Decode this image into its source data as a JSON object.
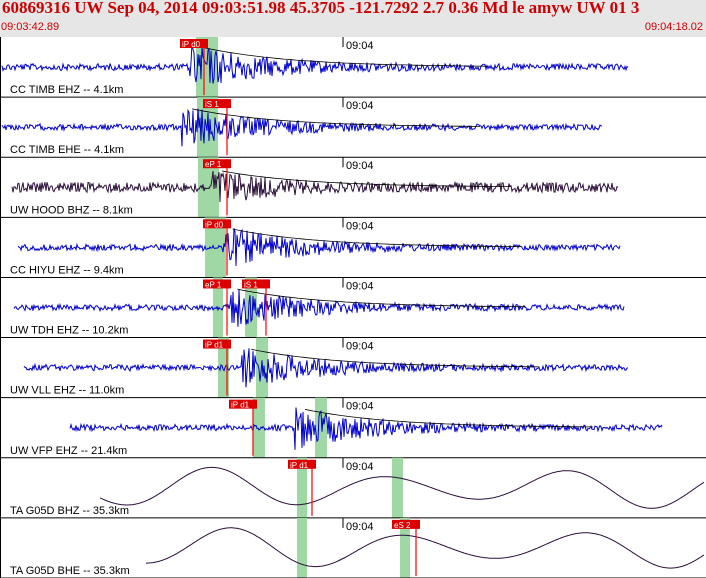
{
  "header": {
    "title": "60869316 UW Sep 04, 2014 09:03:51.98    45.3705 -121.7292  2.7 0.36 Md le amyw UW 01    3",
    "start_time": "09:03:42.89",
    "end_time": "09:04:18.02"
  },
  "colors": {
    "background": "#ffffff",
    "header_bg": "#e6e6e6",
    "header_text": "#cc0000",
    "trace_blue": "#0000cc",
    "trace_dark": "#2b0f3a",
    "pick_red": "#ff0000",
    "pick_label_bg": "#dd0000",
    "window_green": "#9fd8a4",
    "coda_line": "#000000"
  },
  "minute_mark": "09:04",
  "channels": [
    {
      "label": "CC TIMB EHZ -- 4.1km",
      "pick": "iP d0",
      "style": "blue",
      "amp": 1.0,
      "onset": 0.3
    },
    {
      "label": "CC TIMB EHE -- 4.1km",
      "pick": "iS 1",
      "style": "blue",
      "amp": 0.9,
      "onset": 0.3
    },
    {
      "label": "UW HOOD BHZ -- 8.1km",
      "pick": "eP 1",
      "style": "dark",
      "amp": 0.8,
      "onset": 0.33
    },
    {
      "label": "CC HIYU EHZ -- 9.4km",
      "pick": "iP d0",
      "style": "blue",
      "amp": 0.9,
      "onset": 0.34
    },
    {
      "label": "UW TDH EHZ -- 10.2km",
      "picks": [
        "eP 1",
        "iS 1"
      ],
      "style": "blue",
      "amp": 0.9,
      "onset": 0.35
    },
    {
      "label": "UW VLL EHZ -- 11.0km",
      "pick": "iP d1",
      "style": "blue",
      "amp": 0.9,
      "onset": 0.36
    },
    {
      "label": "UW VFP EHZ -- 21.4km",
      "pick": "iP d1",
      "style": "blue",
      "amp": 0.9,
      "onset": 0.38
    },
    {
      "label": "TA G05D BHZ -- 35.3km",
      "pick": "iP d1",
      "style": "lowfreq",
      "amp": 0.9,
      "onset": 0.45
    },
    {
      "label": "TA G05D BHE -- 35.3km",
      "pick": "eS 2",
      "style": "lowfreq",
      "amp": 0.9,
      "onset": 0.57
    }
  ]
}
